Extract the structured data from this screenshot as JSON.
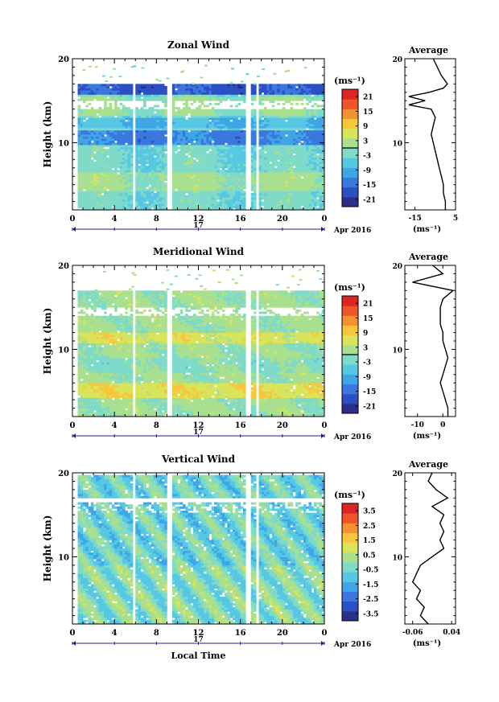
{
  "chart_data": [
    {
      "type": "heatmap",
      "title": "Zonal Wind",
      "ylabel": "Height (km)",
      "xlim": [
        0,
        24
      ],
      "ylim": [
        2,
        20
      ],
      "xticks": [
        "0",
        "4",
        "8",
        "12",
        "16",
        "20",
        "0"
      ],
      "yticks": [
        "10",
        "20"
      ],
      "date_label": "17",
      "month_year": "Apr 2016",
      "colorbar": {
        "unit": "(ms⁻¹)",
        "min": -24,
        "max": 24,
        "ticks": [
          "21",
          "15",
          "9",
          "3",
          "-3",
          "-9",
          "-15",
          "-21"
        ],
        "zero_line": 0
      },
      "profile": {
        "title": "Average",
        "xlabel": "(ms⁻¹)",
        "xlim": [
          -20,
          5
        ],
        "xticks": [
          "-15",
          "5"
        ],
        "yticks": [
          "10",
          "20"
        ],
        "heights": [
          2,
          3,
          4,
          5,
          6,
          7,
          8,
          9,
          10,
          11,
          12,
          13,
          14,
          14.5,
          15,
          15.5,
          16,
          16.5,
          17,
          18,
          19,
          20
        ],
        "values": [
          0,
          0,
          -1,
          -1,
          -2,
          -3,
          -4,
          -5,
          -6,
          -7,
          -6,
          -5,
          -7,
          -18,
          -10,
          -18,
          -8,
          -1,
          1,
          -2,
          -4,
          -6
        ]
      }
    },
    {
      "type": "heatmap",
      "title": "Meridional Wind",
      "ylabel": "Height (km)",
      "xlim": [
        0,
        24
      ],
      "ylim": [
        2,
        20
      ],
      "xticks": [
        "0",
        "4",
        "8",
        "12",
        "16",
        "20",
        "0"
      ],
      "yticks": [
        "10",
        "20"
      ],
      "date_label": "17",
      "month_year": "Apr 2016",
      "colorbar": {
        "unit": "(ms⁻¹)",
        "min": -24,
        "max": 24,
        "ticks": [
          "21",
          "15",
          "9",
          "3",
          "-3",
          "-9",
          "-15",
          "-21"
        ],
        "zero_line": 0
      },
      "profile": {
        "title": "Average",
        "xlabel": "(ms⁻¹)",
        "xlim": [
          -15,
          5
        ],
        "xticks": [
          "-10",
          "0"
        ],
        "yticks": [
          "10",
          "20"
        ],
        "heights": [
          2,
          3,
          4,
          5,
          6,
          7,
          8,
          9,
          10,
          11,
          12,
          13,
          14,
          15,
          16,
          17,
          18,
          19,
          20
        ],
        "values": [
          2,
          2,
          1,
          0,
          -1,
          0,
          1,
          2,
          1,
          0,
          0,
          -1,
          -1,
          -1,
          0,
          4,
          -12,
          0,
          -4
        ]
      }
    },
    {
      "type": "heatmap",
      "title": "Vertical Wind",
      "xlabel": "Local Time",
      "ylabel": "Height (km)",
      "xlim": [
        0,
        24
      ],
      "ylim": [
        2,
        20
      ],
      "xticks": [
        "0",
        "4",
        "8",
        "12",
        "16",
        "20",
        "0"
      ],
      "yticks": [
        "10",
        "20"
      ],
      "date_label": "17",
      "month_year": "Apr 2016",
      "colorbar": {
        "unit": "(ms⁻¹)",
        "min": -4,
        "max": 4,
        "ticks": [
          "3.5",
          "2.5",
          "1.5",
          "0.5",
          "-0.5",
          "-1.5",
          "-2.5",
          "-3.5"
        ]
      },
      "profile": {
        "title": "Average",
        "xlabel": "(ms⁻¹)",
        "xlim": [
          -0.08,
          0.05
        ],
        "xticks": [
          "-0.06",
          "0.04"
        ],
        "yticks": [
          "10",
          "20"
        ],
        "heights": [
          2,
          3,
          4,
          5,
          6,
          7,
          8,
          9,
          10,
          11,
          12,
          13,
          14,
          15,
          16,
          17,
          18,
          19,
          20
        ],
        "values": [
          -0.02,
          -0.04,
          -0.03,
          -0.05,
          -0.04,
          -0.06,
          -0.05,
          -0.04,
          -0.01,
          0.02,
          0.01,
          0.02,
          0.01,
          0.02,
          -0.01,
          0.03,
          0.0,
          -0.02,
          -0.01
        ]
      }
    }
  ],
  "colors": {
    "jet": [
      "#2a2f88",
      "#2c4fc4",
      "#3a78de",
      "#3fa6e6",
      "#57c8e4",
      "#7fdac8",
      "#a9e08f",
      "#d9e45a",
      "#f7c63a",
      "#f49130",
      "#ee5528",
      "#dc2626"
    ]
  }
}
